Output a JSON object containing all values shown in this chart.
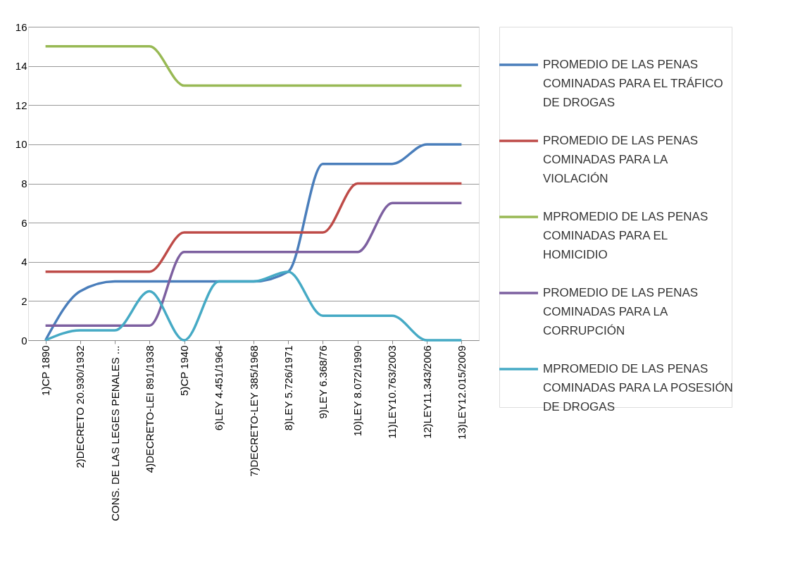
{
  "chart_data": {
    "type": "line",
    "categories": [
      "1)CP 1890",
      "2)DECRETO 20.930/1932",
      "CONS. DE LAS LEGES PENALES ...",
      "4)DECRETO-LEI 891/1938",
      "5)CP 1940",
      "6)LEY 4.451/1964",
      "7)DECRETO-LEY 385/1968",
      "8)LEY 5.726/1971",
      "9)LEY 6.368/76",
      "10)LEY 8.072/1990",
      "11)LEY10.763/2003",
      "12)LEY11.343/2006",
      "13)LEY12.015/2009"
    ],
    "series": [
      {
        "name": "PROMEDIO DE LAS PENAS COMINADAS PARA EL TRÁFICO DE DROGAS",
        "color": "#4a7ebb",
        "values": [
          0,
          2.5,
          3,
          3,
          3,
          3,
          3,
          3.5,
          9,
          9,
          9,
          10,
          10
        ]
      },
      {
        "name": "PROMEDIO DE LAS PENAS COMINADAS PARA LA VIOLACIÓN",
        "color": "#be4b48",
        "values": [
          3.5,
          3.5,
          3.5,
          3.5,
          5.5,
          5.5,
          5.5,
          5.5,
          5.5,
          8,
          8,
          8,
          8
        ]
      },
      {
        "name": "MPROMEDIO DE LAS PENAS COMINADAS PARA EL  HOMICIDIO",
        "color": "#98b954",
        "values": [
          15,
          15,
          15,
          15,
          13,
          13,
          13,
          13,
          13,
          13,
          13,
          13,
          13
        ]
      },
      {
        "name": "PROMEDIO DE LAS PENAS COMINADAS PARA LA CORRUPCIÓN",
        "color": "#7d60a0",
        "values": [
          0.75,
          0.75,
          0.75,
          0.75,
          4.5,
          4.5,
          4.5,
          4.5,
          4.5,
          4.5,
          7,
          7,
          7
        ]
      },
      {
        "name": "MPROMEDIO DE LAS PENAS COMINADAS PARA LA POSESIÓN DE DROGAS",
        "color": "#46aac5",
        "values": [
          0,
          0.5,
          0.5,
          2.5,
          0,
          3,
          3,
          3.5,
          1.25,
          1.25,
          1.25,
          0,
          0
        ]
      }
    ],
    "ylim": [
      0,
      16
    ],
    "yticks": [
      0,
      2,
      4,
      6,
      8,
      10,
      12,
      14,
      16
    ],
    "grid": "y",
    "legend": "right",
    "marker": "none",
    "line_style": "solid"
  }
}
